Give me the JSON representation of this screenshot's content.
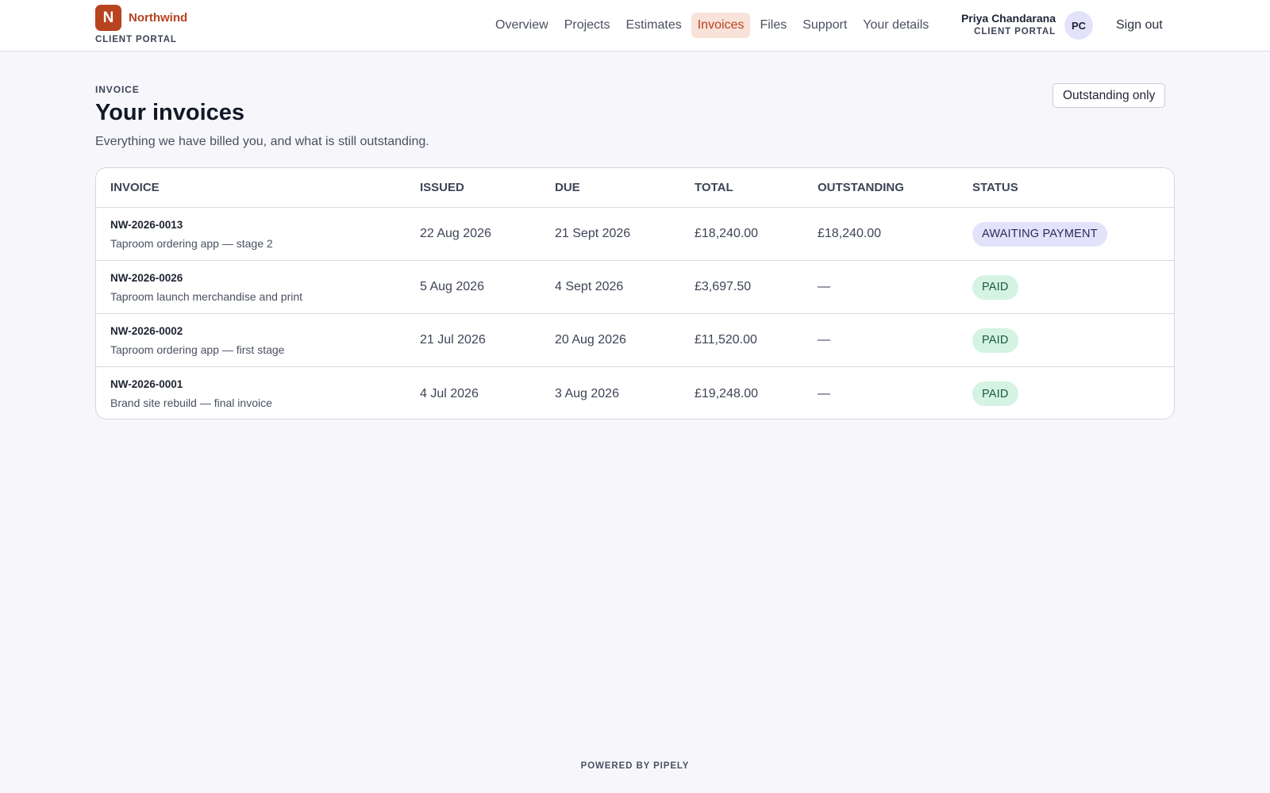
{
  "brand": {
    "logo_letter": "N",
    "name": "Northwind",
    "subtitle": "CLIENT PORTAL",
    "accent_color": "#b8431f"
  },
  "nav": {
    "items": [
      {
        "label": "Overview",
        "active": false
      },
      {
        "label": "Projects",
        "active": false
      },
      {
        "label": "Estimates",
        "active": false
      },
      {
        "label": "Invoices",
        "active": true
      },
      {
        "label": "Files",
        "active": false
      },
      {
        "label": "Support",
        "active": false
      },
      {
        "label": "Your details",
        "active": false
      }
    ]
  },
  "user": {
    "name": "Priya Chandarana",
    "role": "CLIENT PORTAL",
    "initials": "PC",
    "sign_out_label": "Sign out"
  },
  "page": {
    "eyebrow": "INVOICE",
    "title": "Your invoices",
    "subtitle": "Everything we have billed you, and what is still outstanding.",
    "filter_label": "Outstanding only"
  },
  "table": {
    "headers": {
      "invoice": "INVOICE",
      "issued": "ISSUED",
      "due": "DUE",
      "total": "TOTAL",
      "outstanding": "OUTSTANDING",
      "status": "STATUS"
    },
    "rows": [
      {
        "number": "NW-2026-0013",
        "description": "Taproom ordering app — stage 2",
        "issued": "22 Aug 2026",
        "due": "21 Sept 2026",
        "total": "£18,240.00",
        "outstanding": "£18,240.00",
        "status": "AWAITING PAYMENT",
        "status_kind": "awaiting"
      },
      {
        "number": "NW-2026-0026",
        "description": "Taproom launch merchandise and print",
        "issued": "5 Aug 2026",
        "due": "4 Sept 2026",
        "total": "£3,697.50",
        "outstanding": "—",
        "status": "PAID",
        "status_kind": "paid"
      },
      {
        "number": "NW-2026-0002",
        "description": "Taproom ordering app — first stage",
        "issued": "21 Jul 2026",
        "due": "20 Aug 2026",
        "total": "£11,520.00",
        "outstanding": "—",
        "status": "PAID",
        "status_kind": "paid"
      },
      {
        "number": "NW-2026-0001",
        "description": "Brand site rebuild — final invoice",
        "issued": "4 Jul 2026",
        "due": "3 Aug 2026",
        "total": "£19,248.00",
        "outstanding": "—",
        "status": "PAID",
        "status_kind": "paid"
      }
    ]
  },
  "footer": {
    "text": "POWERED BY PIPELY"
  }
}
